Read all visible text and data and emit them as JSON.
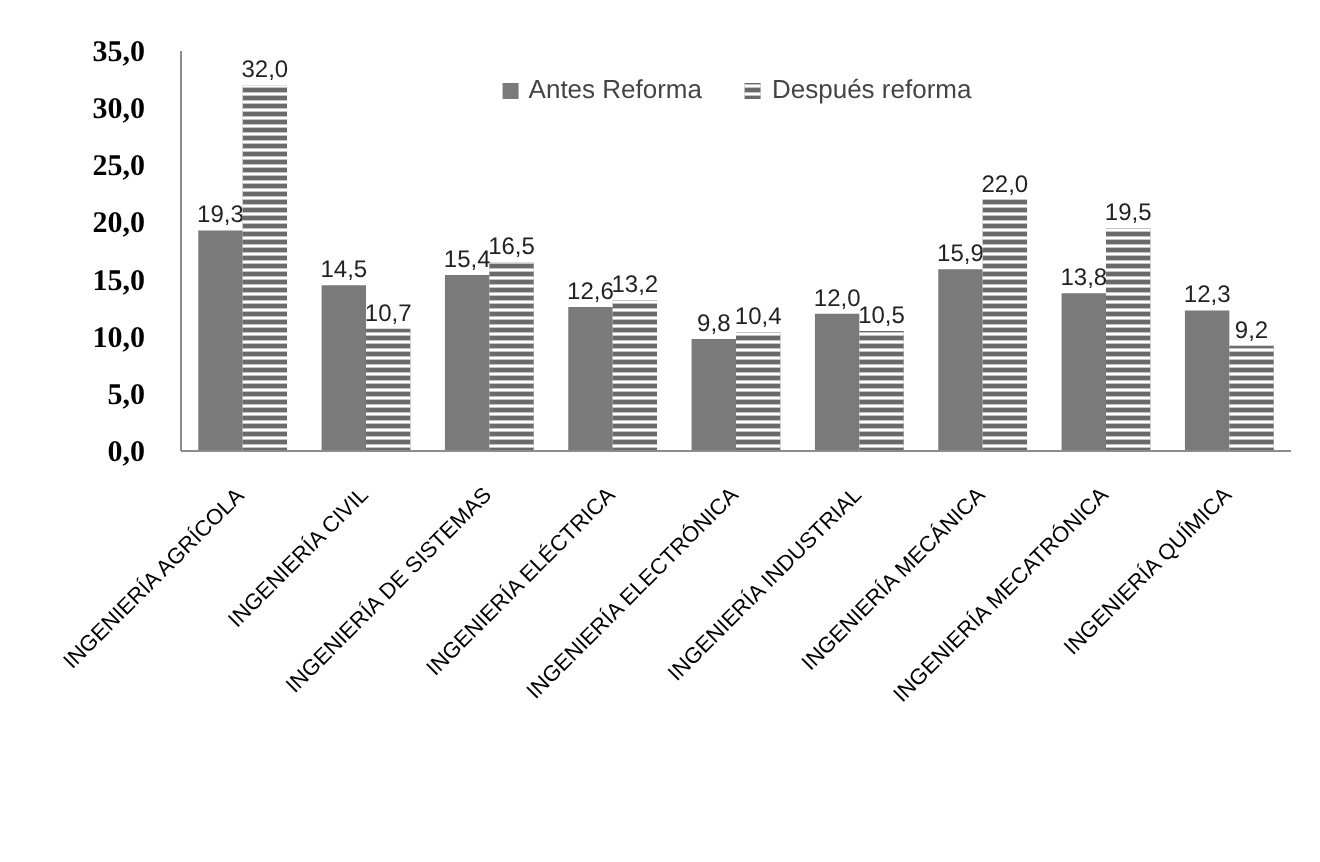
{
  "chart_data": {
    "type": "bar",
    "categories": [
      "INGENIERÍA AGRÍCOLA",
      "INGENIERÍA CIVIL",
      "INGENIERÍA DE SISTEMAS",
      "INGENIERÍA ELÉCTRICA",
      "INGENIERÍA ELECTRÓNICA",
      "INGENIERÍA INDUSTRIAL",
      "INGENIERÍA MECÁNICA",
      "INGENIERÍA MECATRÓNICA",
      "INGENIERÍA QUÍMICA"
    ],
    "series": [
      {
        "name": "Antes Reforma",
        "color": "#7a7a7a",
        "values": [
          19.3,
          14.5,
          15.4,
          12.6,
          9.8,
          12.0,
          15.9,
          13.8,
          12.3
        ],
        "value_labels": [
          "19,3",
          "14,5",
          "15,4",
          "12,6",
          "9,8",
          "12,0",
          "15,9",
          "13,8",
          "12,3"
        ]
      },
      {
        "name": "Después reforma",
        "color": "#6a6a6a",
        "values": [
          32.0,
          10.7,
          16.5,
          13.2,
          10.4,
          10.5,
          22.0,
          19.5,
          9.2
        ],
        "value_labels": [
          "32,0",
          "10,7",
          "16,5",
          "13,2",
          "10,4",
          "10,5",
          "22,0",
          "19,5",
          "9,2"
        ]
      }
    ],
    "ylim": [
      0,
      35
    ],
    "yticks": [
      {
        "value": 0,
        "label": "0,0"
      },
      {
        "value": 5,
        "label": "5,0"
      },
      {
        "value": 10,
        "label": "10,0"
      },
      {
        "value": 15,
        "label": "15,0"
      },
      {
        "value": 20,
        "label": "20,0"
      },
      {
        "value": 25,
        "label": "25,0"
      },
      {
        "value": 30,
        "label": "30,0"
      },
      {
        "value": 35,
        "label": "35,0"
      }
    ],
    "grid": false,
    "legend": "top"
  }
}
